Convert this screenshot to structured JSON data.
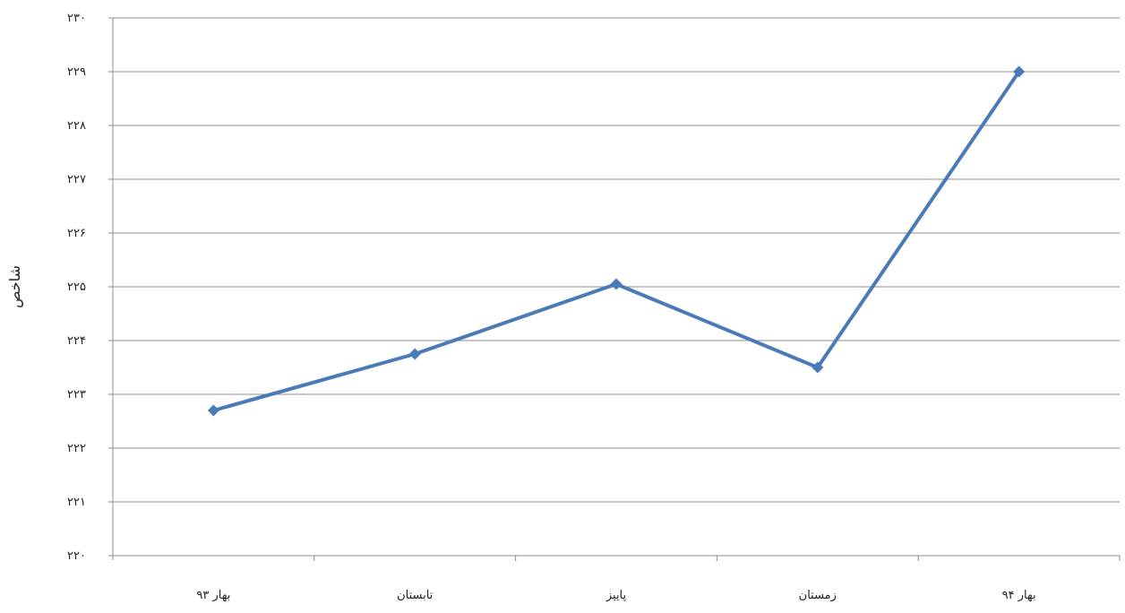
{
  "chart_data": {
    "type": "line",
    "title": "",
    "xlabel": "",
    "ylabel": "شاخص",
    "categories": [
      "بهار ۹۳",
      "تابستان",
      "پاییز",
      "زمستان",
      "بهار ۹۴"
    ],
    "series": [
      {
        "values": [
          222.7,
          223.75,
          225.05,
          223.5,
          229.0
        ],
        "color": "#4a7ab8"
      }
    ],
    "ylim": [
      220,
      230
    ],
    "yticks": [
      220,
      221,
      222,
      223,
      224,
      225,
      226,
      227,
      228,
      229,
      230
    ],
    "ytick_labels": [
      "۲۲۰",
      "۲۲۱",
      "۲۲۲",
      "۲۲۳",
      "۲۲۴",
      "۲۲۵",
      "۲۲۶",
      "۲۲۷",
      "۲۲۸",
      "۲۲۹",
      "۲۳۰"
    ],
    "grid": true,
    "legend": "none"
  }
}
